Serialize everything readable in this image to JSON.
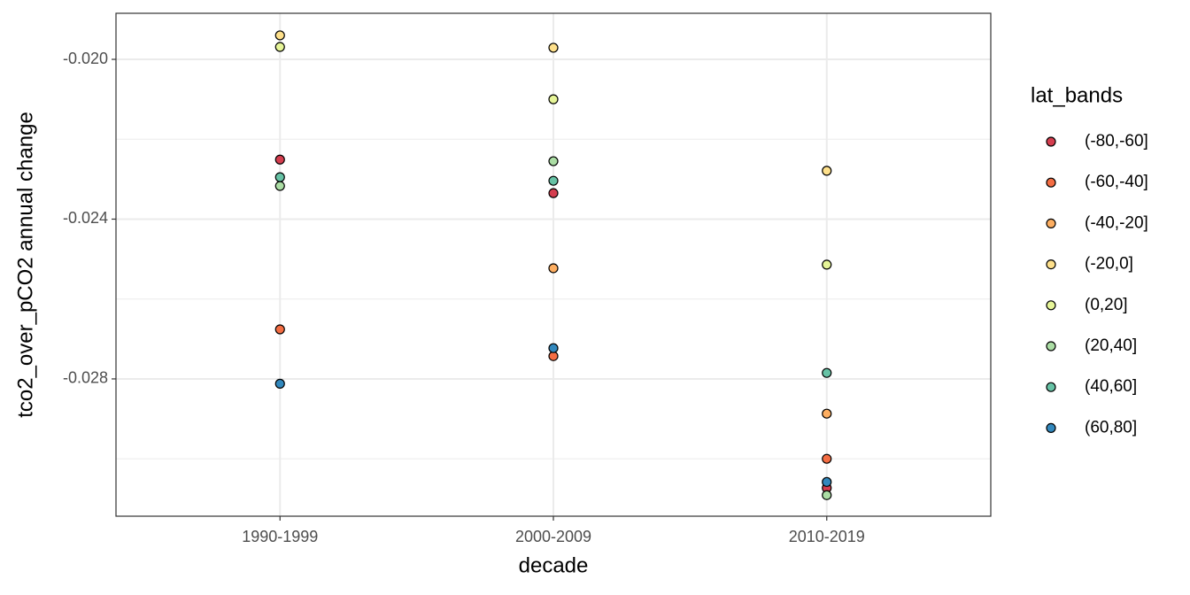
{
  "chart_data": {
    "type": "scatter",
    "x_label": "decade",
    "y_label": "tco2_over_pCO2 annual change",
    "legend_title": "lat_bands",
    "legend_position": "right",
    "grid": true,
    "categories": [
      "1990-1999",
      "2000-2009",
      "2010-2019"
    ],
    "ylim": [
      -0.031437,
      -0.018847
    ],
    "yticks": [
      {
        "value": -0.02,
        "label": "-0.020"
      },
      {
        "value": -0.024,
        "label": "-0.024"
      },
      {
        "value": -0.028,
        "label": "-0.028"
      }
    ],
    "series": [
      {
        "name": "(-80,-60]",
        "color": "#D53E4F",
        "values": [
          -0.02251,
          -0.02335,
          -0.03073
        ]
      },
      {
        "name": "(-60,-40]",
        "color": "#F46D43",
        "values": [
          -0.02676,
          -0.02743,
          -0.03
        ]
      },
      {
        "name": "(-40,-20]",
        "color": "#FDAE61",
        "values": [
          null,
          -0.02523,
          -0.02887
        ]
      },
      {
        "name": "(-20,0]",
        "color": "#FEE08B",
        "values": [
          -0.0194,
          -0.01971,
          -0.02279
        ]
      },
      {
        "name": "(0,20]",
        "color": "#E6F598",
        "values": [
          -0.01969,
          -0.021,
          -0.02514
        ]
      },
      {
        "name": "(20,40]",
        "color": "#ABDDA4",
        "values": [
          -0.02317,
          -0.02255,
          -0.03091
        ]
      },
      {
        "name": "(40,60]",
        "color": "#66C2A5",
        "values": [
          -0.02295,
          -0.02304,
          -0.02785
        ]
      },
      {
        "name": "(60,80]",
        "color": "#3288BD",
        "values": [
          -0.02812,
          -0.02723,
          -0.03058
        ]
      }
    ]
  }
}
